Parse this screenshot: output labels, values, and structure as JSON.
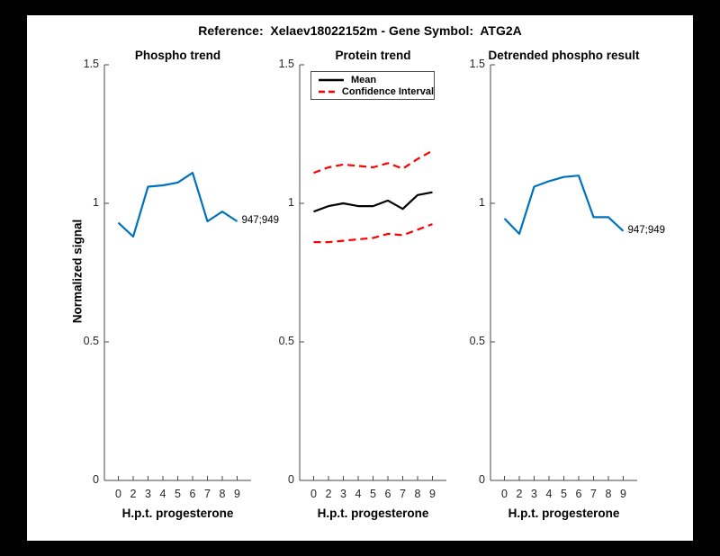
{
  "figure": {
    "title": "Reference:  Xelaev18022152m - Gene Symbol:  ATG2A"
  },
  "axis": {
    "ylabel": "Normalized signal",
    "xlabel": "H.p.t. progesterone",
    "ylim": [
      0,
      1.5
    ],
    "y_ticks": [
      0,
      0.5,
      1,
      1.5
    ],
    "y_tick_labels": [
      "0",
      "0.5",
      "1",
      "1.5"
    ],
    "x_tick_labels": [
      "0",
      "2",
      "3",
      "4",
      "5",
      "6",
      "7",
      "8",
      "9"
    ],
    "grid": "off"
  },
  "colors": {
    "line_blue": "#0072BD",
    "ci_red": "#FF0000",
    "mean_black": "#000000",
    "tick_text": "#262626",
    "spine": "#4a4a4a"
  },
  "legend": {
    "entries": [
      {
        "label": "Mean",
        "style": "solid",
        "color": "#000000"
      },
      {
        "label": "Confidence Interval",
        "style": "dashed",
        "color": "#FF0000"
      }
    ],
    "position": "top-inside-middle-plot"
  },
  "chart_data": [
    {
      "type": "line",
      "title": "Phospho trend",
      "xlabel": "H.p.t. progesterone",
      "ylabel": "Normalized signal",
      "ylim": [
        0,
        1.5
      ],
      "categories": [
        "0",
        "2",
        "3",
        "4",
        "5",
        "6",
        "7",
        "8",
        "9"
      ],
      "series": [
        {
          "name": "947;949",
          "color": "#0072BD",
          "style": "solid",
          "values": [
            0.93,
            0.88,
            1.06,
            1.065,
            1.075,
            1.11,
            0.935,
            0.97,
            0.935
          ]
        }
      ],
      "end_label": "947;949"
    },
    {
      "type": "line",
      "title": "Protein trend",
      "xlabel": "H.p.t. progesterone",
      "ylim": [
        0,
        1.5
      ],
      "categories": [
        "0",
        "2",
        "3",
        "4",
        "5",
        "6",
        "7",
        "8",
        "9"
      ],
      "series": [
        {
          "name": "Mean",
          "color": "#000000",
          "style": "solid",
          "values": [
            0.97,
            0.99,
            1.0,
            0.99,
            0.99,
            1.01,
            0.98,
            1.03,
            1.04
          ]
        },
        {
          "name": "Confidence Interval upper",
          "color": "#FF0000",
          "style": "dashed",
          "values": [
            1.11,
            1.13,
            1.14,
            1.135,
            1.13,
            1.145,
            1.125,
            1.16,
            1.19
          ]
        },
        {
          "name": "Confidence Interval lower",
          "color": "#FF0000",
          "style": "dashed",
          "values": [
            0.86,
            0.86,
            0.865,
            0.87,
            0.875,
            0.89,
            0.885,
            0.905,
            0.925
          ]
        }
      ],
      "has_legend": true
    },
    {
      "type": "line",
      "title": "Detrended phospho result",
      "xlabel": "H.p.t. progesterone",
      "ylim": [
        0,
        1.5
      ],
      "categories": [
        "0",
        "2",
        "3",
        "4",
        "5",
        "6",
        "7",
        "8",
        "9"
      ],
      "series": [
        {
          "name": "947;949",
          "color": "#0072BD",
          "style": "solid",
          "values": [
            0.945,
            0.89,
            1.06,
            1.08,
            1.095,
            1.1,
            0.95,
            0.95,
            0.9
          ]
        }
      ],
      "end_label": "947;949"
    }
  ]
}
